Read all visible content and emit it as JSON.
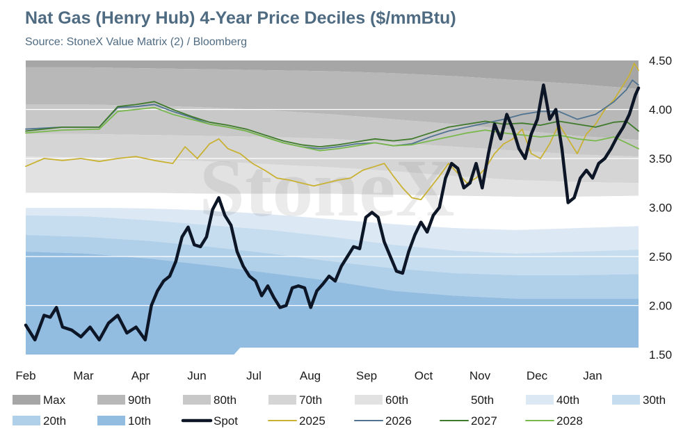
{
  "header": {
    "title": "Nat Gas (Henry Hub) 4-Year Price Deciles ($/mmBtu)",
    "subtitle": "Source: StoneX Value Matrix (2) / Bloomberg"
  },
  "watermark": "StoneX",
  "colors": {
    "max": "#a6a6a6",
    "p90": "#b8b8b8",
    "p80": "#c8c8c8",
    "p70": "#d5d5d5",
    "p60": "#e2e2e2",
    "p40": "#dce8f4",
    "p30": "#c6dcef",
    "p20": "#b0cfe8",
    "p10": "#92bce0",
    "spot": "#0d1626",
    "y2025": "#c9b233",
    "y2026": "#4f7390",
    "y2027": "#3f7a2c",
    "y2028": "#7ab84d",
    "gridline": "#ffffff",
    "axis_text": "#1a1a1a"
  },
  "chart_data": {
    "type": "area",
    "title": "Nat Gas (Henry Hub) 4-Year Price Deciles ($/mmBtu)",
    "ylim": [
      1.5,
      4.5
    ],
    "yticks": [
      1.5,
      2.0,
      2.5,
      3.0,
      3.5,
      4.0,
      4.5
    ],
    "ytick_labels": [
      "1.50",
      "2.00",
      "2.50",
      "3.00",
      "3.50",
      "4.00",
      "4.50"
    ],
    "y_axis_side": "right",
    "x_months": [
      "Feb",
      "Mar",
      "Apr",
      "Jun",
      "Jul",
      "Aug",
      "Sep",
      "Oct",
      "Nov",
      "Dec",
      "Jan"
    ],
    "legend_position": "bottom",
    "grid": true,
    "legend": [
      {
        "name": "Max",
        "kind": "swatch",
        "color": "#a6a6a6"
      },
      {
        "name": "90th",
        "kind": "swatch",
        "color": "#b8b8b8"
      },
      {
        "name": "80th",
        "kind": "swatch",
        "color": "#c8c8c8"
      },
      {
        "name": "70th",
        "kind": "swatch",
        "color": "#d5d5d5"
      },
      {
        "name": "60th",
        "kind": "swatch",
        "color": "#e2e2e2"
      },
      {
        "name": "50th",
        "kind": "swatch",
        "color": "#ffffff"
      },
      {
        "name": "40th",
        "kind": "swatch",
        "color": "#dce8f4"
      },
      {
        "name": "30th",
        "kind": "swatch",
        "color": "#c6dcef"
      },
      {
        "name": "20th",
        "kind": "swatch",
        "color": "#b0cfe8"
      },
      {
        "name": "10th",
        "kind": "swatch",
        "color": "#92bce0"
      },
      {
        "name": "Spot",
        "kind": "line",
        "color": "#0d1626"
      },
      {
        "name": "2025",
        "kind": "line",
        "color": "#c9b233"
      },
      {
        "name": "2026",
        "kind": "line",
        "color": "#4f7390"
      },
      {
        "name": "2027",
        "kind": "line",
        "color": "#3f7a2c"
      },
      {
        "name": "2028",
        "kind": "line",
        "color": "#7ab84d"
      }
    ],
    "bands": [
      {
        "name": "Max",
        "x": [
          0,
          100
        ],
        "values": [
          4.5,
          4.5
        ]
      },
      {
        "name": "90th",
        "x": [
          0,
          10,
          20,
          30,
          40,
          50,
          60,
          70,
          80,
          90,
          100
        ],
        "values": [
          4.43,
          4.43,
          4.42,
          4.41,
          4.4,
          4.39,
          4.37,
          4.34,
          4.3,
          4.26,
          4.21
        ]
      },
      {
        "name": "80th",
        "x": [
          0,
          10,
          20,
          30,
          40,
          50,
          60,
          70,
          80,
          90,
          100
        ],
        "values": [
          4.05,
          4.05,
          4.04,
          4.02,
          3.99,
          3.95,
          3.9,
          3.85,
          3.79,
          3.73,
          3.69
        ]
      },
      {
        "name": "70th",
        "x": [
          0,
          10,
          20,
          30,
          40,
          50,
          60,
          70,
          80,
          90,
          100
        ],
        "values": [
          3.75,
          3.75,
          3.74,
          3.73,
          3.72,
          3.7,
          3.66,
          3.62,
          3.58,
          3.54,
          3.52
        ]
      },
      {
        "name": "60th",
        "x": [
          0,
          10,
          20,
          30,
          40,
          50,
          60,
          70,
          80,
          90,
          100
        ],
        "values": [
          3.52,
          3.51,
          3.49,
          3.47,
          3.44,
          3.41,
          3.37,
          3.32,
          3.28,
          3.26,
          3.25
        ]
      },
      {
        "name": "50th",
        "x": [
          0,
          10,
          20,
          30,
          40,
          50,
          60,
          70,
          80,
          90,
          100
        ],
        "values": [
          3.15,
          3.15,
          3.15,
          3.14,
          3.14,
          3.14,
          3.13,
          3.12,
          3.11,
          3.11,
          3.12
        ]
      },
      {
        "name": "40th",
        "x": [
          0,
          10,
          20,
          30,
          40,
          50,
          60,
          70,
          80,
          90,
          100
        ],
        "values": [
          3.0,
          3.0,
          2.99,
          2.97,
          2.93,
          2.88,
          2.83,
          2.79,
          2.77,
          2.79,
          2.81
        ]
      },
      {
        "name": "30th",
        "x": [
          0,
          10,
          20,
          30,
          40,
          50,
          60,
          70,
          80,
          90,
          100
        ],
        "values": [
          2.92,
          2.91,
          2.87,
          2.82,
          2.77,
          2.7,
          2.62,
          2.56,
          2.53,
          2.55,
          2.57
        ]
      },
      {
        "name": "20th",
        "x": [
          0,
          10,
          20,
          30,
          40,
          50,
          60,
          70,
          80,
          90,
          100
        ],
        "values": [
          2.72,
          2.7,
          2.66,
          2.6,
          2.53,
          2.45,
          2.38,
          2.33,
          2.31,
          2.31,
          2.32
        ]
      },
      {
        "name": "10th",
        "x": [
          0,
          10,
          20,
          30,
          40,
          50,
          60,
          70,
          80,
          90,
          100
        ],
        "values": [
          2.55,
          2.53,
          2.48,
          2.41,
          2.33,
          2.25,
          2.15,
          2.1,
          2.07,
          2.07,
          2.07
        ]
      }
    ],
    "band_floor": {
      "x": [
        0,
        34.5,
        34.6,
        100
      ],
      "values": [
        1.5,
        1.5,
        1.57,
        1.57
      ]
    },
    "series": [
      {
        "name": "Spot",
        "color": "#0d1626",
        "width": 4.5,
        "x": [
          0,
          1.5,
          3,
          4,
          5,
          6,
          7.5,
          9,
          10.5,
          12,
          13.5,
          15,
          16.5,
          18,
          19.5,
          20.5,
          21.5,
          22.5,
          23.5,
          24.5,
          25.5,
          26.5,
          27.5,
          28.5,
          29.5,
          30.5,
          31.5,
          32.5,
          33.5,
          34.5,
          35.5,
          36.5,
          37.5,
          38.5,
          39.5,
          40.5,
          41.5,
          42.5,
          43.5,
          44.5,
          45.5,
          46.5,
          47.5,
          48.5,
          49.5,
          50.5,
          51.5,
          52.5,
          53.5,
          54.5,
          55.5,
          56.5,
          57.5,
          58.5,
          59.5,
          60.5,
          61.5,
          62.5,
          63.5,
          64.5,
          65.5,
          66.5,
          67.5,
          68.5,
          69.5,
          70.5,
          71.5,
          72.5,
          73.5,
          74.5,
          75.5,
          76.5,
          77.5,
          78.5,
          79.5,
          80.5,
          81.5,
          82.5,
          83.5,
          84.5,
          85.5,
          86.5,
          87.5,
          88.5,
          89.5,
          90.5,
          91.5,
          92.5,
          93.5,
          94.5,
          95.5,
          96.5,
          97.5,
          98.5,
          99.5,
          100
        ],
        "values": [
          1.8,
          1.65,
          1.9,
          1.88,
          1.98,
          1.78,
          1.75,
          1.68,
          1.78,
          1.65,
          1.82,
          1.9,
          1.72,
          1.78,
          1.65,
          2.0,
          2.15,
          2.25,
          2.3,
          2.45,
          2.7,
          2.8,
          2.62,
          2.6,
          2.7,
          2.98,
          3.1,
          2.92,
          2.82,
          2.55,
          2.4,
          2.3,
          2.25,
          2.1,
          2.2,
          2.08,
          1.98,
          2.0,
          2.18,
          2.2,
          2.18,
          1.98,
          2.15,
          2.22,
          2.3,
          2.25,
          2.4,
          2.5,
          2.6,
          2.58,
          2.9,
          2.95,
          2.9,
          2.65,
          2.5,
          2.35,
          2.33,
          2.55,
          2.72,
          2.85,
          2.75,
          2.92,
          3.0,
          3.3,
          3.45,
          3.4,
          3.2,
          3.25,
          3.45,
          3.2,
          3.55,
          3.85,
          3.7,
          3.95,
          3.8,
          3.6,
          3.5,
          3.75,
          3.9,
          4.25,
          3.9,
          4.0,
          3.6,
          3.05,
          3.1,
          3.3,
          3.38,
          3.3,
          3.45,
          3.5,
          3.6,
          3.72,
          3.82,
          3.95,
          4.15,
          4.22
        ]
      },
      {
        "name": "2025",
        "color": "#c9b233",
        "width": 1.8,
        "x": [
          0,
          3,
          6,
          9,
          12,
          15,
          18,
          21,
          24,
          26,
          28,
          30,
          31.5,
          33,
          35,
          37,
          39,
          41,
          43,
          45,
          47,
          49,
          51,
          53,
          55,
          57,
          58.5,
          60,
          61.5,
          63,
          64.5,
          66,
          67.5,
          69,
          70.5,
          72,
          73.5,
          75,
          76.5,
          78,
          79.5,
          81,
          82.5,
          84,
          85.5,
          87,
          88.5,
          90,
          91.5,
          93,
          94.5,
          96,
          97.5,
          98.5,
          99.3,
          100
        ],
        "values": [
          3.42,
          3.5,
          3.48,
          3.5,
          3.47,
          3.5,
          3.52,
          3.48,
          3.45,
          3.62,
          3.5,
          3.65,
          3.7,
          3.6,
          3.55,
          3.45,
          3.38,
          3.3,
          3.28,
          3.25,
          3.22,
          3.25,
          3.28,
          3.3,
          3.38,
          3.42,
          3.45,
          3.32,
          3.2,
          3.1,
          3.08,
          3.2,
          3.32,
          3.45,
          3.35,
          3.25,
          3.3,
          3.4,
          3.55,
          3.65,
          3.7,
          3.8,
          3.55,
          3.5,
          3.65,
          3.85,
          3.7,
          3.55,
          3.75,
          3.85,
          4.0,
          4.1,
          4.25,
          4.35,
          4.47,
          4.4
        ]
      },
      {
        "name": "2026",
        "color": "#4f7390",
        "width": 1.8,
        "x": [
          0,
          6,
          12,
          15,
          18,
          21,
          24,
          27,
          30,
          33,
          36,
          39,
          42,
          45,
          48,
          51,
          54,
          57,
          60,
          63,
          66,
          69,
          72,
          75,
          78,
          81,
          84,
          87,
          90,
          93,
          96,
          98,
          99,
          100
        ],
        "values": [
          3.8,
          3.82,
          3.82,
          4.02,
          4.03,
          4.05,
          3.98,
          3.92,
          3.85,
          3.82,
          3.78,
          3.72,
          3.66,
          3.62,
          3.6,
          3.62,
          3.65,
          3.66,
          3.63,
          3.65,
          3.72,
          3.78,
          3.82,
          3.86,
          3.9,
          3.95,
          3.98,
          3.98,
          3.9,
          3.95,
          4.08,
          4.2,
          4.3,
          4.25
        ]
      },
      {
        "name": "2027",
        "color": "#3f7a2c",
        "width": 1.8,
        "x": [
          0,
          6,
          12,
          15,
          18,
          21,
          24,
          27,
          30,
          33,
          36,
          39,
          42,
          45,
          48,
          51,
          54,
          57,
          60,
          63,
          66,
          69,
          72,
          75,
          78,
          81,
          84,
          87,
          90,
          93,
          96,
          98,
          100
        ],
        "values": [
          3.78,
          3.82,
          3.82,
          4.03,
          4.05,
          4.08,
          4.0,
          3.93,
          3.87,
          3.84,
          3.8,
          3.74,
          3.68,
          3.64,
          3.62,
          3.64,
          3.67,
          3.7,
          3.68,
          3.7,
          3.76,
          3.82,
          3.85,
          3.88,
          3.85,
          3.86,
          3.84,
          3.88,
          3.85,
          3.82,
          3.87,
          3.88,
          3.78
        ]
      },
      {
        "name": "2028",
        "color": "#7ab84d",
        "width": 1.8,
        "x": [
          0,
          6,
          12,
          15,
          18,
          21,
          24,
          27,
          30,
          33,
          36,
          39,
          42,
          45,
          48,
          51,
          54,
          57,
          60,
          63,
          66,
          69,
          72,
          75,
          78,
          81,
          84,
          87,
          90,
          93,
          96,
          98,
          100
        ],
        "values": [
          3.76,
          3.79,
          3.8,
          3.98,
          4.0,
          4.02,
          3.95,
          3.9,
          3.85,
          3.82,
          3.78,
          3.72,
          3.66,
          3.62,
          3.58,
          3.6,
          3.63,
          3.66,
          3.63,
          3.64,
          3.68,
          3.72,
          3.76,
          3.79,
          3.76,
          3.74,
          3.72,
          3.74,
          3.7,
          3.68,
          3.72,
          3.66,
          3.6
        ]
      }
    ]
  }
}
